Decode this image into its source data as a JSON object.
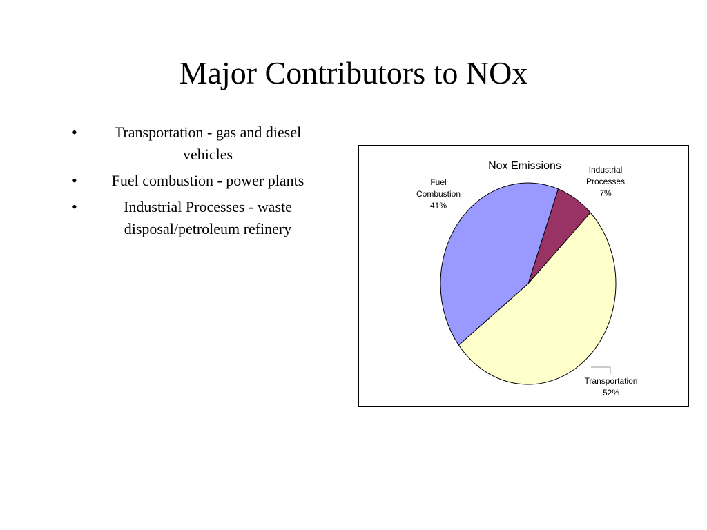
{
  "slide": {
    "title": "Major Contributors to NOx",
    "bullet_glyph": "•",
    "bullets": [
      "Transportation - gas and diesel vehicles",
      "Fuel combustion - power plants",
      "Industrial Processes - waste disposal/petroleum refinery"
    ]
  },
  "chart_data": {
    "type": "pie",
    "title": "Nox Emissions",
    "slices": [
      {
        "name": "Industrial Processes",
        "label_lines": [
          "Industrial",
          "Processes"
        ],
        "value": 7,
        "value_label": "7%",
        "color": "#993366"
      },
      {
        "name": "Transportation",
        "label_lines": [
          "Transportation"
        ],
        "value": 52,
        "value_label": "52%",
        "color": "#FFFFCC"
      },
      {
        "name": "Fuel Combustion",
        "label_lines": [
          "Fuel",
          "Combustion"
        ],
        "value": 41,
        "value_label": "41%",
        "color": "#9999FF"
      }
    ],
    "start_angle_deg": 20,
    "direction": "clockwise",
    "legend": "none",
    "border": true
  }
}
